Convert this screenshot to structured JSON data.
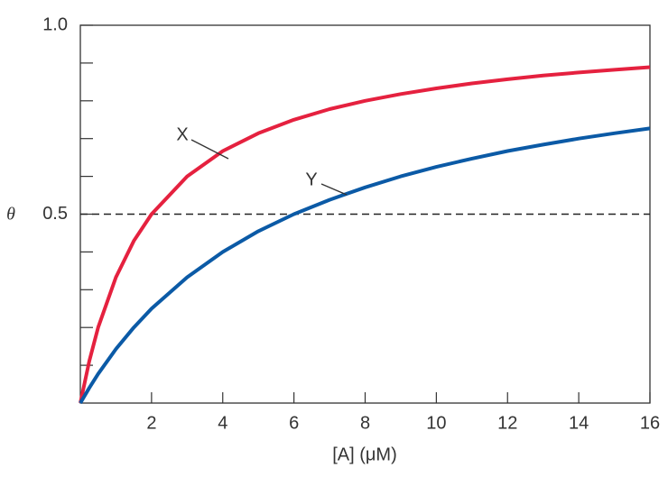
{
  "chart_data": {
    "type": "line",
    "x_label": "[A] (μM)",
    "y_label": "θ",
    "x": [
      0,
      0.25,
      0.5,
      1,
      1.5,
      2,
      3,
      4,
      5,
      6,
      7,
      8,
      9,
      10,
      11,
      12,
      13,
      14,
      15,
      16
    ],
    "series": [
      {
        "name": "X",
        "color": "#e5213f",
        "values": [
          0,
          0.111,
          0.2,
          0.333,
          0.429,
          0.5,
          0.6,
          0.667,
          0.714,
          0.75,
          0.778,
          0.8,
          0.818,
          0.833,
          0.846,
          0.857,
          0.867,
          0.875,
          0.882,
          0.889
        ]
      },
      {
        "name": "Y",
        "color": "#0b5aa6",
        "values": [
          0,
          0.04,
          0.077,
          0.143,
          0.2,
          0.25,
          0.333,
          0.4,
          0.455,
          0.5,
          0.538,
          0.571,
          0.6,
          0.625,
          0.647,
          0.667,
          0.684,
          0.7,
          0.714,
          0.727
        ]
      }
    ],
    "xlim": [
      0,
      16
    ],
    "ylim": [
      0,
      1
    ],
    "xticks": [
      2,
      4,
      6,
      8,
      10,
      12,
      14,
      16
    ],
    "yticks": [
      0.5,
      {
        "value": 1,
        "label": "1.0"
      }
    ],
    "y_minor_ticks": [
      0.1,
      0.2,
      0.3,
      0.4,
      0.6,
      0.7,
      0.8,
      0.9
    ],
    "hline": 0.5,
    "grid": false
  }
}
